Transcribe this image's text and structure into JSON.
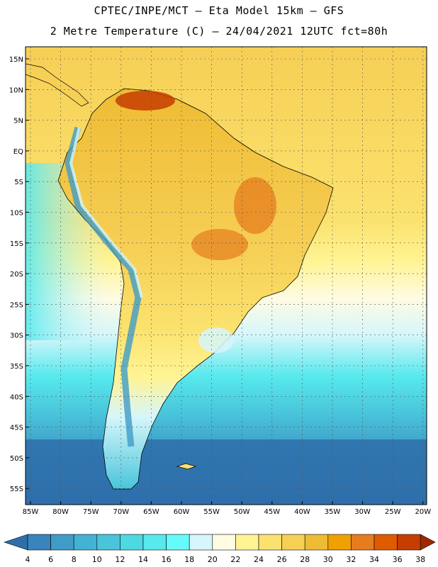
{
  "header": {
    "title_line1": "CPTEC/INPE/MCT –  Eta Model 15km – GFS",
    "title_line2": "2 Metre Temperature (C) – 24/04/2021 12UTC fct=80h"
  },
  "map": {
    "region": "South America",
    "lat_labels": [
      "15N",
      "10N",
      "5N",
      "EQ",
      "5S",
      "10S",
      "15S",
      "20S",
      "25S",
      "30S",
      "35S",
      "40S",
      "45S",
      "50S",
      "55S"
    ],
    "lon_labels": [
      "85W",
      "80W",
      "75W",
      "70W",
      "65W",
      "60W",
      "55W",
      "50W",
      "45W",
      "40W",
      "35W",
      "30W",
      "25W",
      "20W"
    ]
  },
  "colorbar": {
    "labels": [
      "4",
      "6",
      "8",
      "10",
      "12",
      "14",
      "16",
      "18",
      "20",
      "22",
      "24",
      "26",
      "28",
      "30",
      "32",
      "34",
      "36",
      "38"
    ],
    "colors": [
      "#2e6faa",
      "#3a84bd",
      "#3f9cc7",
      "#44b2d2",
      "#49c5db",
      "#4dd8e3",
      "#57e9ed",
      "#66fbfb",
      "#d6f6fb",
      "#fffbe3",
      "#fff494",
      "#fbe26e",
      "#f6cf55",
      "#eebc34",
      "#f0a000",
      "#e67c1e",
      "#e05a00",
      "#c53d00",
      "#a02800",
      "#5f86c4"
    ]
  }
}
